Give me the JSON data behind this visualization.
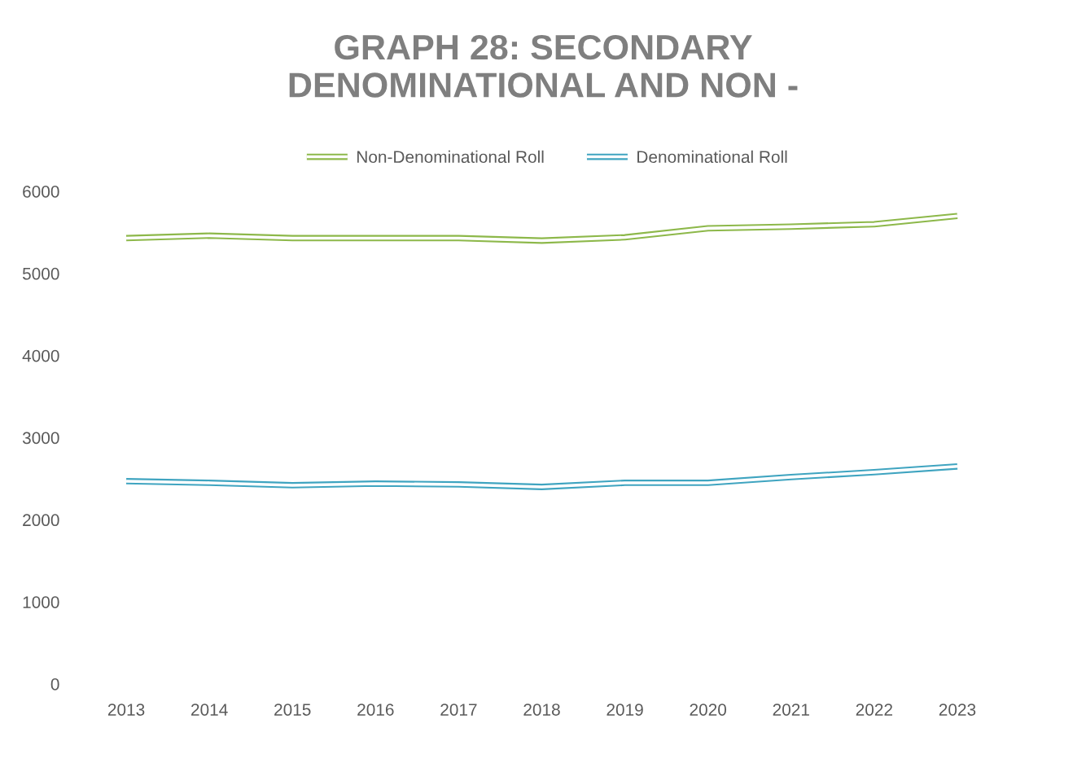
{
  "chart_data": {
    "type": "line",
    "title": "GRAPH 28: SECONDARY\nDENOMINATIONAL AND NON -",
    "categories": [
      "2013",
      "2014",
      "2015",
      "2016",
      "2017",
      "2018",
      "2019",
      "2020",
      "2021",
      "2022",
      "2023"
    ],
    "series": [
      {
        "name": "Non-Denominational Roll",
        "color": "#8db84a",
        "values": [
          5430,
          5460,
          5430,
          5430,
          5430,
          5400,
          5440,
          5550,
          5570,
          5600,
          5700
        ]
      },
      {
        "name": "Denominational Roll",
        "color": "#3fa4c0",
        "values": [
          2470,
          2450,
          2420,
          2440,
          2430,
          2400,
          2450,
          2450,
          2520,
          2580,
          2650
        ]
      }
    ],
    "ylim": [
      0,
      6000
    ],
    "yticks": [
      0,
      1000,
      2000,
      3000,
      4000,
      5000,
      6000
    ],
    "legend": "top"
  }
}
